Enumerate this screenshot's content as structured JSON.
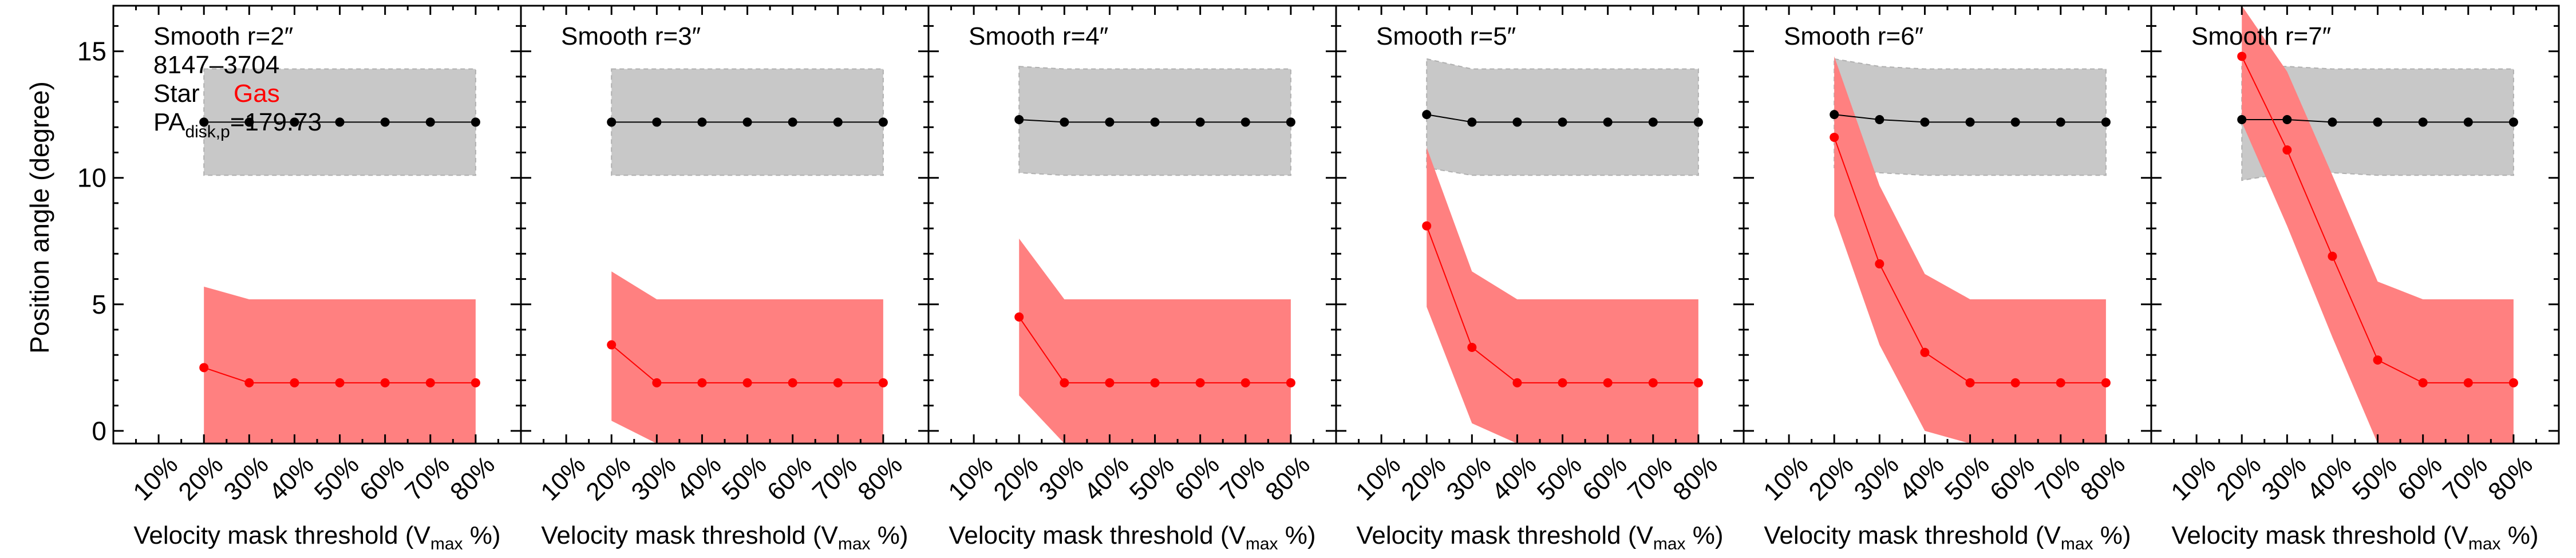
{
  "chart_data": {
    "type": "line",
    "ylabel": "Position angle (degree)",
    "xlabel_main": "Velocity mask threshold (V",
    "xlabel_sub": "max",
    "xlabel_end": " %)",
    "x_categories": [
      "10%",
      "20%",
      "30%",
      "40%",
      "50%",
      "60%",
      "70%",
      "80%"
    ],
    "y_ticks": [
      0,
      5,
      10,
      15
    ],
    "ylim": [
      -0.5,
      16.8
    ],
    "galaxy_id": "8147–3704",
    "legend": {
      "star_label": "Star",
      "gas_label": "Gas",
      "star_color": "#000000",
      "gas_color": "#ff0000",
      "star_band_color": "#c8c8c8",
      "gas_band_color": "#ff8080"
    },
    "pa_disk": {
      "prefix": "PA",
      "sub": "disk,p",
      "value": "=179.73"
    },
    "panels": [
      {
        "title": "Smooth r=2″",
        "x": [
          20,
          30,
          40,
          50,
          60,
          70,
          80
        ],
        "star": [
          12.2,
          12.2,
          12.2,
          12.2,
          12.2,
          12.2,
          12.2
        ],
        "star_lo": [
          10.1,
          10.1,
          10.1,
          10.1,
          10.1,
          10.1,
          10.1
        ],
        "star_hi": [
          14.3,
          14.3,
          14.3,
          14.3,
          14.3,
          14.3,
          14.3
        ],
        "gas": [
          2.5,
          1.9,
          1.9,
          1.9,
          1.9,
          1.9,
          1.9
        ],
        "gas_lo": [
          -0.5,
          -0.5,
          -0.5,
          -0.5,
          -0.5,
          -0.5,
          -0.5
        ],
        "gas_hi": [
          5.7,
          5.2,
          5.2,
          5.2,
          5.2,
          5.2,
          5.2
        ]
      },
      {
        "title": "Smooth r=3″",
        "x": [
          20,
          30,
          40,
          50,
          60,
          70,
          80
        ],
        "star": [
          12.2,
          12.2,
          12.2,
          12.2,
          12.2,
          12.2,
          12.2
        ],
        "star_lo": [
          10.1,
          10.1,
          10.1,
          10.1,
          10.1,
          10.1,
          10.1
        ],
        "star_hi": [
          14.3,
          14.3,
          14.3,
          14.3,
          14.3,
          14.3,
          14.3
        ],
        "gas": [
          3.4,
          1.9,
          1.9,
          1.9,
          1.9,
          1.9,
          1.9
        ],
        "gas_lo": [
          0.4,
          -0.5,
          -0.5,
          -0.5,
          -0.5,
          -0.5,
          -0.5
        ],
        "gas_hi": [
          6.3,
          5.2,
          5.2,
          5.2,
          5.2,
          5.2,
          5.2
        ]
      },
      {
        "title": "Smooth r=4″",
        "x": [
          20,
          30,
          40,
          50,
          60,
          70,
          80
        ],
        "star": [
          12.3,
          12.2,
          12.2,
          12.2,
          12.2,
          12.2,
          12.2
        ],
        "star_lo": [
          10.2,
          10.1,
          10.1,
          10.1,
          10.1,
          10.1,
          10.1
        ],
        "star_hi": [
          14.4,
          14.3,
          14.3,
          14.3,
          14.3,
          14.3,
          14.3
        ],
        "gas": [
          4.5,
          1.9,
          1.9,
          1.9,
          1.9,
          1.9,
          1.9
        ],
        "gas_lo": [
          1.4,
          -0.5,
          -0.5,
          -0.5,
          -0.5,
          -0.5,
          -0.5
        ],
        "gas_hi": [
          7.6,
          5.2,
          5.2,
          5.2,
          5.2,
          5.2,
          5.2
        ]
      },
      {
        "title": "Smooth r=5″",
        "x": [
          20,
          30,
          40,
          50,
          60,
          70,
          80
        ],
        "star": [
          12.5,
          12.2,
          12.2,
          12.2,
          12.2,
          12.2,
          12.2
        ],
        "star_lo": [
          10.4,
          10.1,
          10.1,
          10.1,
          10.1,
          10.1,
          10.1
        ],
        "star_hi": [
          14.7,
          14.3,
          14.3,
          14.3,
          14.3,
          14.3,
          14.3
        ],
        "gas": [
          8.1,
          3.3,
          1.9,
          1.9,
          1.9,
          1.9,
          1.9
        ],
        "gas_lo": [
          4.9,
          0.3,
          -0.5,
          -0.5,
          -0.5,
          -0.5,
          -0.5
        ],
        "gas_hi": [
          11.2,
          6.3,
          5.2,
          5.2,
          5.2,
          5.2,
          5.2
        ]
      },
      {
        "title": "Smooth r=6″",
        "x": [
          20,
          30,
          40,
          50,
          60,
          70,
          80
        ],
        "star": [
          12.5,
          12.3,
          12.2,
          12.2,
          12.2,
          12.2,
          12.2
        ],
        "star_lo": [
          10.4,
          10.2,
          10.1,
          10.1,
          10.1,
          10.1,
          10.1
        ],
        "star_hi": [
          14.7,
          14.4,
          14.3,
          14.3,
          14.3,
          14.3,
          14.3
        ],
        "gas": [
          11.6,
          6.6,
          3.1,
          1.9,
          1.9,
          1.9,
          1.9
        ],
        "gas_lo": [
          8.5,
          3.4,
          0.0,
          -0.5,
          -0.5,
          -0.5,
          -0.5
        ],
        "gas_hi": [
          14.8,
          9.7,
          6.2,
          5.2,
          5.2,
          5.2,
          5.2
        ]
      },
      {
        "title": "Smooth r=7″",
        "x": [
          20,
          30,
          40,
          50,
          60,
          70,
          80
        ],
        "star": [
          12.3,
          12.3,
          12.2,
          12.2,
          12.2,
          12.2,
          12.2
        ],
        "star_lo": [
          9.9,
          10.2,
          10.2,
          10.1,
          10.1,
          10.1,
          10.1
        ],
        "star_hi": [
          14.4,
          14.4,
          14.3,
          14.3,
          14.3,
          14.3,
          14.3
        ],
        "gas": [
          14.8,
          11.1,
          6.9,
          2.8,
          1.9,
          1.9,
          1.9
        ],
        "gas_lo": [
          12.2,
          8.1,
          3.7,
          -0.5,
          -0.5,
          -0.5,
          -0.5
        ],
        "gas_hi": [
          16.8,
          14.2,
          10.1,
          5.9,
          5.2,
          5.2,
          5.2
        ]
      }
    ]
  }
}
